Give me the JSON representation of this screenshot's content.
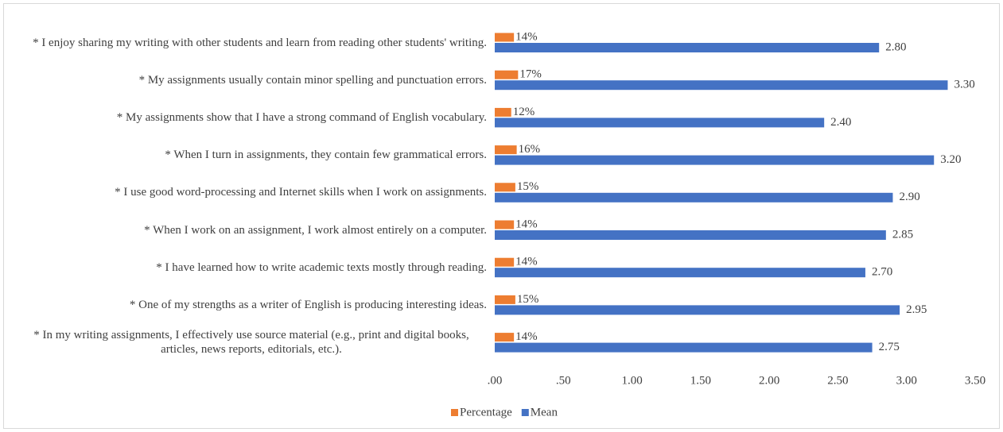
{
  "chart_data": {
    "type": "barh",
    "categories": [
      "* I enjoy sharing my writing with other students and learn from reading other students' writing.",
      "* My assignments usually contain minor spelling and punctuation errors.",
      "* My assignments show that I have a strong command of English vocabulary.",
      "* When I turn in assignments, they contain few grammatical errors.",
      "* I use good word-processing and Internet skills when I work on assignments.",
      "* When I work on an assignment, I work almost entirely on a computer.",
      "* I have learned how to write academic texts mostly through reading.",
      "* One of my strengths as a writer of English is producing interesting ideas.",
      "* In my writing assignments, I effectively use source material (e.g., print and digital books, articles, news reports, editorials, etc.)."
    ],
    "series": [
      {
        "name": "Percentage",
        "color": "#ed7d31",
        "values": [
          0.14,
          0.17,
          0.12,
          0.16,
          0.15,
          0.14,
          0.14,
          0.15,
          0.14
        ],
        "value_labels": [
          "14%",
          "17%",
          "12%",
          "16%",
          "15%",
          "14%",
          "14%",
          "15%",
          "14%"
        ]
      },
      {
        "name": "Mean",
        "color": "#4472c4",
        "values": [
          2.8,
          3.3,
          2.4,
          3.2,
          2.9,
          2.85,
          2.7,
          2.95,
          2.75
        ],
        "value_labels": [
          "2.80",
          "3.30",
          "2.40",
          "3.20",
          "2.90",
          "2.85",
          "2.70",
          "2.95",
          "2.75"
        ]
      }
    ],
    "xlim": [
      0,
      3.5
    ],
    "xticks": [
      {
        "value": 0,
        "label": ".00"
      },
      {
        "value": 0.5,
        "label": ".50"
      },
      {
        "value": 1,
        "label": "1.00"
      },
      {
        "value": 1.5,
        "label": "1.50"
      },
      {
        "value": 2,
        "label": "2.00"
      },
      {
        "value": 2.5,
        "label": "2.50"
      },
      {
        "value": 3,
        "label": "3.00"
      },
      {
        "value": 3.5,
        "label": "3.50"
      }
    ],
    "legend": "bottom"
  }
}
